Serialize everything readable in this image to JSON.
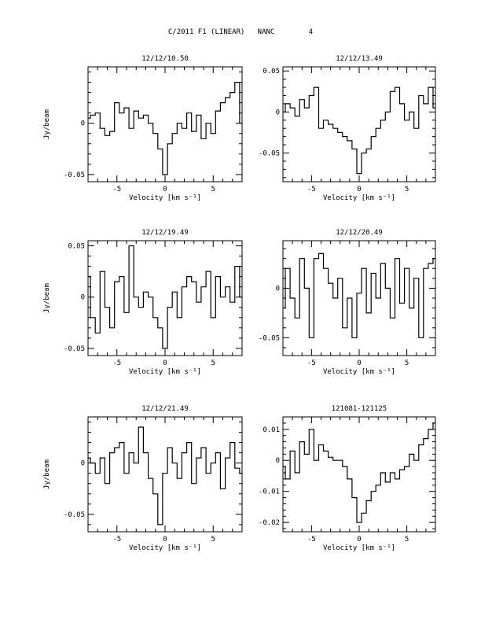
{
  "page": {
    "title": "C/2011 F1 (LINEAR)   NANC        4"
  },
  "chart_data": [
    {
      "type": "line",
      "title": "12/12/10.50",
      "xlabel": "Velocity [km s⁻¹]",
      "ylabel": "Jy/beam",
      "xlim": [
        -8,
        8
      ],
      "ylim": [
        -0.057,
        0.055
      ],
      "xticks": [
        -5,
        0,
        5
      ],
      "yticks": [
        -0.05,
        0
      ],
      "ytick_labels": [
        "-0.05",
        "0"
      ],
      "series": [
        {
          "x": [
            -8,
            -7.5,
            -7,
            -6.5,
            -6,
            -5.5,
            -5,
            -4.5,
            -4,
            -3.5,
            -3,
            -2.5,
            -2,
            -1.5,
            -1,
            -0.5,
            0,
            0.5,
            1,
            1.5,
            2,
            2.5,
            3,
            3.5,
            4,
            4.5,
            5,
            5.5,
            6,
            6.5,
            7,
            7.5,
            8
          ],
          "y": [
            0.005,
            0.008,
            0.01,
            -0.005,
            -0.012,
            -0.008,
            0.02,
            0.01,
            0.015,
            -0.005,
            0.012,
            0.005,
            0.008,
            0.0,
            -0.01,
            -0.025,
            -0.05,
            -0.02,
            -0.01,
            0.0,
            -0.005,
            0.01,
            -0.008,
            0.008,
            -0.015,
            0.0,
            -0.01,
            0.012,
            0.02,
            0.025,
            0.03,
            0.04,
            0.0
          ]
        }
      ]
    },
    {
      "type": "line",
      "title": "12/12/13.49",
      "xlabel": "Velocity [km s⁻¹]",
      "ylabel": "",
      "xlim": [
        -8,
        8
      ],
      "ylim": [
        -0.085,
        0.055
      ],
      "xticks": [
        -5,
        0,
        5
      ],
      "yticks": [
        -0.05,
        0,
        0.05
      ],
      "ytick_labels": [
        "-0.05",
        "0",
        "0.05"
      ],
      "series": [
        {
          "x": [
            -8,
            -7.5,
            -7,
            -6.5,
            -6,
            -5.5,
            -5,
            -4.5,
            -4,
            -3.5,
            -3,
            -2.5,
            -2,
            -1.5,
            -1,
            -0.5,
            0,
            0.5,
            1,
            1.5,
            2,
            2.5,
            3,
            3.5,
            4,
            4.5,
            5,
            5.5,
            6,
            6.5,
            7,
            7.5,
            8
          ],
          "y": [
            0.0,
            0.01,
            0.005,
            -0.005,
            0.015,
            0.005,
            0.02,
            0.03,
            -0.02,
            -0.01,
            -0.015,
            -0.02,
            -0.025,
            -0.03,
            -0.035,
            -0.045,
            -0.075,
            -0.05,
            -0.045,
            -0.03,
            -0.02,
            -0.01,
            0.0,
            0.025,
            0.03,
            0.01,
            -0.01,
            0.0,
            -0.02,
            0.02,
            0.01,
            0.03,
            0.005
          ]
        }
      ]
    },
    {
      "type": "line",
      "title": "12/12/19.49",
      "xlabel": "Velocity [km s⁻¹]",
      "ylabel": "Jy/beam",
      "xlim": [
        -8,
        8
      ],
      "ylim": [
        -0.057,
        0.055
      ],
      "xticks": [
        -5,
        0,
        5
      ],
      "yticks": [
        -0.05,
        0,
        0.05
      ],
      "ytick_labels": [
        "-0.05",
        "0",
        "0.05"
      ],
      "series": [
        {
          "x": [
            -8,
            -7.5,
            -7,
            -6.5,
            -6,
            -5.5,
            -5,
            -4.5,
            -4,
            -3.5,
            -3,
            -2.5,
            -2,
            -1.5,
            -1,
            -0.5,
            0,
            0.5,
            1,
            1.5,
            2,
            2.5,
            3,
            3.5,
            4,
            4.5,
            5,
            5.5,
            6,
            6.5,
            7,
            7.5,
            8
          ],
          "y": [
            0.02,
            -0.02,
            -0.035,
            0.025,
            -0.01,
            -0.03,
            0.015,
            0.02,
            -0.015,
            0.05,
            0.0,
            -0.01,
            0.005,
            0.0,
            -0.02,
            -0.03,
            -0.05,
            -0.01,
            0.005,
            -0.02,
            0.01,
            0.02,
            0.015,
            -0.005,
            0.01,
            0.025,
            -0.02,
            0.02,
            0.0,
            0.01,
            -0.005,
            0.03,
            0.0
          ]
        }
      ]
    },
    {
      "type": "line",
      "title": "12/12/20.49",
      "xlabel": "Velocity [km s⁻¹]",
      "ylabel": "",
      "xlim": [
        -8,
        8
      ],
      "ylim": [
        -0.068,
        0.048
      ],
      "xticks": [
        -5,
        0,
        5
      ],
      "yticks": [
        -0.05,
        0
      ],
      "ytick_labels": [
        "-0.05",
        "0"
      ],
      "series": [
        {
          "x": [
            -8,
            -7.5,
            -7,
            -6.5,
            -6,
            -5.5,
            -5,
            -4.5,
            -4,
            -3.5,
            -3,
            -2.5,
            -2,
            -1.5,
            -1,
            -0.5,
            0,
            0.5,
            1,
            1.5,
            2,
            2.5,
            3,
            3.5,
            4,
            4.5,
            5,
            5.5,
            6,
            6.5,
            7,
            7.5,
            8
          ],
          "y": [
            -0.02,
            0.02,
            -0.01,
            -0.03,
            0.03,
            0.0,
            -0.05,
            0.03,
            0.035,
            0.02,
            0.005,
            -0.01,
            0.01,
            -0.04,
            -0.01,
            -0.05,
            -0.005,
            0.02,
            -0.025,
            0.015,
            -0.01,
            0.025,
            0.0,
            -0.03,
            0.03,
            -0.015,
            0.02,
            -0.02,
            0.01,
            -0.05,
            0.02,
            0.025,
            0.03
          ]
        }
      ]
    },
    {
      "type": "line",
      "title": "12/12/21.49",
      "xlabel": "Velocity [km s⁻¹]",
      "ylabel": "Jy/beam",
      "xlim": [
        -8,
        8
      ],
      "ylim": [
        -0.067,
        0.045
      ],
      "xticks": [
        -5,
        0,
        5
      ],
      "yticks": [
        -0.05,
        0
      ],
      "ytick_labels": [
        "-0.05",
        "0"
      ],
      "series": [
        {
          "x": [
            -8,
            -7.5,
            -7,
            -6.5,
            -6,
            -5.5,
            -5,
            -4.5,
            -4,
            -3.5,
            -3,
            -2.5,
            -2,
            -1.5,
            -1,
            -0.5,
            0,
            0.5,
            1,
            1.5,
            2,
            2.5,
            3,
            3.5,
            4,
            4.5,
            5,
            5.5,
            6,
            6.5,
            7,
            7.5,
            8
          ],
          "y": [
            0.005,
            0.0,
            -0.01,
            0.005,
            -0.02,
            0.01,
            0.015,
            0.02,
            -0.01,
            0.01,
            0.0,
            0.035,
            0.01,
            -0.015,
            -0.03,
            -0.06,
            -0.01,
            0.015,
            0.0,
            -0.015,
            0.01,
            0.02,
            -0.02,
            0.005,
            0.015,
            -0.01,
            0.0,
            0.01,
            -0.025,
            0.005,
            0.02,
            -0.005,
            -0.01
          ]
        }
      ]
    },
    {
      "type": "line",
      "title": "121081-121125",
      "xlabel": "Velocity [km s⁻¹]",
      "ylabel": "",
      "xlim": [
        -8,
        8
      ],
      "ylim": [
        -0.023,
        0.014
      ],
      "xticks": [
        -5,
        0,
        5
      ],
      "yticks": [
        -0.02,
        -0.01,
        0,
        0.01
      ],
      "ytick_labels": [
        "-0.02",
        "-0.01",
        "0",
        "0.01"
      ],
      "series": [
        {
          "x": [
            -8,
            -7.5,
            -7,
            -6.5,
            -6,
            -5.5,
            -5,
            -4.5,
            -4,
            -3.5,
            -3,
            -2.5,
            -2,
            -1.5,
            -1,
            -0.5,
            0,
            0.5,
            1,
            1.5,
            2,
            2.5,
            3,
            3.5,
            4,
            4.5,
            5,
            5.5,
            6,
            6.5,
            7,
            7.5,
            8
          ],
          "y": [
            -0.002,
            -0.006,
            0.003,
            -0.004,
            0.006,
            0.002,
            0.01,
            0.0,
            0.005,
            0.003,
            0.001,
            0.0,
            0.0,
            -0.002,
            -0.006,
            -0.012,
            -0.02,
            -0.017,
            -0.013,
            -0.01,
            -0.008,
            -0.004,
            -0.007,
            -0.004,
            -0.006,
            -0.003,
            -0.002,
            0.002,
            0.0,
            0.005,
            0.007,
            0.01,
            0.012
          ]
        }
      ]
    }
  ]
}
